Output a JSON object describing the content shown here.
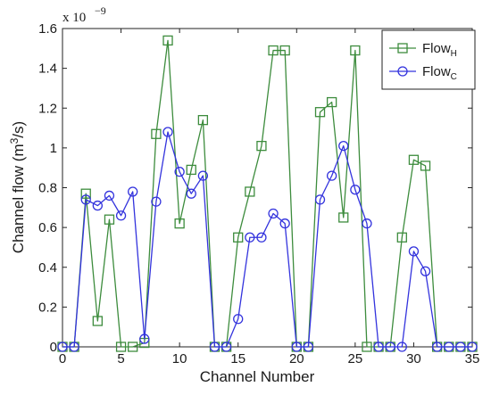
{
  "chart_data": {
    "type": "line",
    "xlabel": "Channel Number",
    "ylabel_main": "Channel flow (m",
    "ylabel_sup": "3",
    "ylabel_end": "/s)",
    "exponent_base": "x 10",
    "exponent_power": "−9",
    "xlim": [
      0,
      35
    ],
    "ylim": [
      0,
      1.6
    ],
    "xticks": [
      0,
      5,
      10,
      15,
      20,
      25,
      30,
      35
    ],
    "yticks": [
      0,
      0.2,
      0.4,
      0.6,
      0.8,
      1,
      1.2,
      1.4,
      1.6
    ],
    "ytick_labels": [
      "0",
      "0.2",
      "0.4",
      "0.6",
      "0.8",
      "1",
      "1.2",
      "1.4",
      "1.6"
    ],
    "grid": false,
    "legend_position": "top-right",
    "x": [
      0,
      1,
      2,
      3,
      4,
      5,
      6,
      7,
      8,
      9,
      10,
      11,
      12,
      13,
      14,
      15,
      16,
      17,
      18,
      19,
      20,
      21,
      22,
      23,
      24,
      25,
      26,
      27,
      28,
      29,
      30,
      31,
      32,
      33,
      34,
      35
    ],
    "series": [
      {
        "name_main": "Flow",
        "name_sub": "H",
        "color": "#3d8c3d",
        "marker": "square",
        "values": [
          0,
          0,
          0.77,
          0.13,
          0.64,
          0,
          0,
          0.02,
          1.07,
          1.54,
          0.62,
          0.89,
          1.14,
          0,
          0,
          0.55,
          0.78,
          1.01,
          1.49,
          1.49,
          0,
          0,
          1.18,
          1.23,
          0.65,
          1.49,
          0,
          0,
          0,
          0.55,
          0.94,
          0.91,
          0,
          0,
          0,
          0
        ]
      },
      {
        "name_main": "Flow",
        "name_sub": "C",
        "color": "#3333dd",
        "marker": "circle",
        "values": [
          0,
          0,
          0.74,
          0.71,
          0.76,
          0.66,
          0.78,
          0.04,
          0.73,
          1.08,
          0.88,
          0.77,
          0.86,
          0,
          0,
          0.14,
          0.55,
          0.55,
          0.67,
          0.62,
          0,
          0,
          0.74,
          0.86,
          1.01,
          0.79,
          0.62,
          0,
          0,
          0,
          0.48,
          0.38,
          0,
          0,
          0,
          0
        ]
      }
    ]
  }
}
